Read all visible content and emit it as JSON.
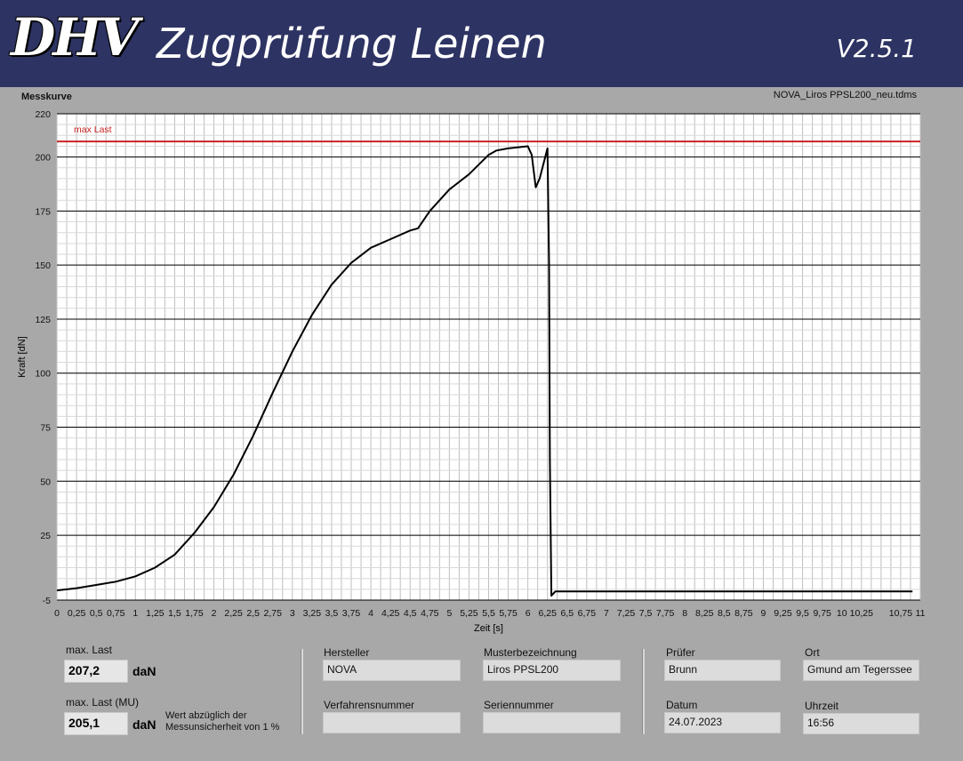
{
  "header": {
    "logo": "DHV",
    "title": "Zugprüfung Leinen",
    "version": "V2.5.1"
  },
  "chart_panel": {
    "label": "Messkurve",
    "filename": "NOVA_Liros PPSL200_neu.tdms"
  },
  "chart_data": {
    "type": "line",
    "xlabel": "Zeit [s]",
    "ylabel": "Kraft [dN]",
    "xlim": [
      0,
      11
    ],
    "ylim": [
      -5,
      220
    ],
    "x_ticks": [
      "0",
      "0,25",
      "0,5",
      "0,75",
      "1",
      "1,25",
      "1,5",
      "1,75",
      "2",
      "2,25",
      "2,5",
      "2,75",
      "3",
      "3,25",
      "3,5",
      "3,75",
      "4",
      "4,25",
      "4,5",
      "4,75",
      "5",
      "5,25",
      "5,5",
      "5,75",
      "6",
      "6,25",
      "6,5",
      "6,75",
      "7",
      "7,25",
      "7,5",
      "7,75",
      "8",
      "8,25",
      "8,5",
      "8,75",
      "9",
      "9,25",
      "9,5",
      "9,75",
      "10",
      "10,25",
      "10,75",
      "11"
    ],
    "y_ticks": [
      "-5",
      "25",
      "50",
      "75",
      "100",
      "125",
      "150",
      "175",
      "200",
      "220"
    ],
    "grid": true,
    "reference_line": {
      "label": "max Last",
      "y": 207.2,
      "color": "#cc2222"
    },
    "series": [
      {
        "color": "#000000",
        "x": [
          0,
          0.25,
          0.5,
          0.75,
          1,
          1.25,
          1.5,
          1.75,
          2,
          2.25,
          2.5,
          2.75,
          3,
          3.25,
          3.5,
          3.75,
          4,
          4.25,
          4.5,
          4.6,
          4.75,
          5,
          5.25,
          5.5,
          5.6,
          5.75,
          6,
          6.05,
          6.1,
          6.15,
          6.25,
          6.27,
          6.28,
          6.3,
          6.35,
          6.5,
          7,
          8,
          9,
          10,
          10.9
        ],
        "y": [
          -0.5,
          0.5,
          2,
          3.5,
          6,
          10,
          16,
          26,
          38,
          53,
          71,
          91,
          110,
          127,
          141,
          151,
          158,
          162,
          166,
          167,
          175,
          185,
          192,
          201,
          203,
          204,
          205,
          201,
          186,
          190,
          204,
          150,
          60,
          -3,
          -1,
          -1,
          -1,
          -1,
          -1,
          -1,
          -1
        ]
      }
    ]
  },
  "stats": {
    "max_last_label": "max. Last",
    "max_last_value": "207,2",
    "max_last_unit": "daN",
    "max_last_mu_label": "max. Last (MU)",
    "max_last_mu_value": "205,1",
    "max_last_mu_unit": "daN",
    "note_line1": "Wert abzüglich der",
    "note_line2": "Messunsicherheit von 1 %"
  },
  "info": {
    "hersteller_label": "Hersteller",
    "hersteller": "NOVA",
    "muster_label": "Musterbezeichnung",
    "muster": "Liros PPSL200",
    "verfahren_label": "Verfahrensnummer",
    "verfahren": "",
    "serien_label": "Seriennummer",
    "serien": "",
    "pruefer_label": "Prüfer",
    "pruefer": "Brunn",
    "ort_label": "Ort",
    "ort": "Gmund am Tegerssee",
    "datum_label": "Datum",
    "datum": "24.07.2023",
    "uhrzeit_label": "Uhrzeit",
    "uhrzeit": "16:56"
  }
}
